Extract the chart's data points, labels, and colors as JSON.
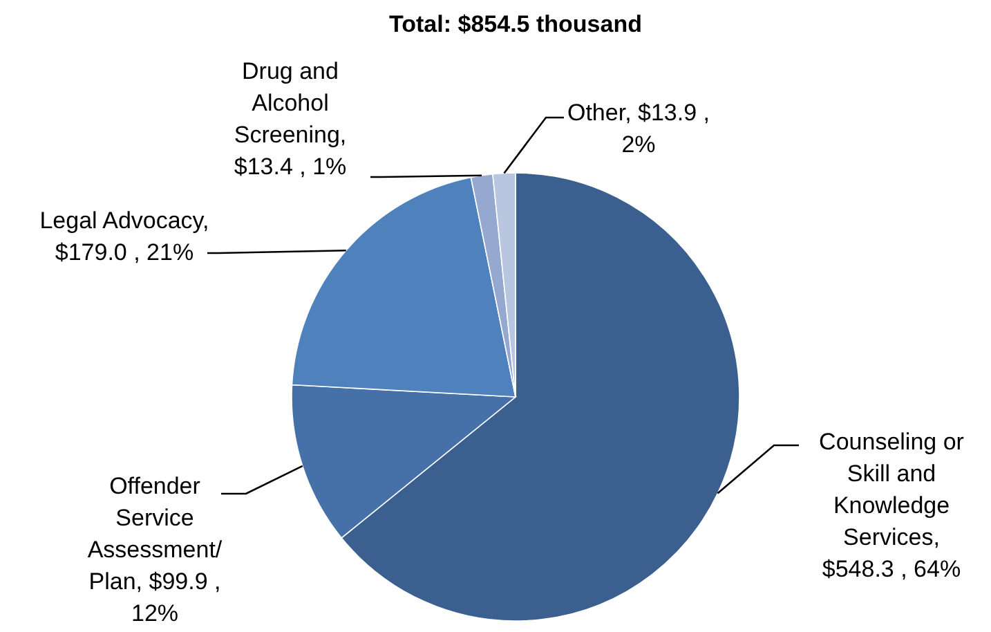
{
  "chart_data": {
    "type": "pie",
    "title": "Total: $854.5 thousand",
    "categories": [
      "Counseling or Skill and Knowledge Services",
      "Offender Service Assessment/Plan",
      "Legal Advocacy",
      "Drug and Alcohol Screening",
      "Other"
    ],
    "values": [
      548.3,
      99.9,
      179.0,
      13.4,
      13.9
    ],
    "colors": [
      "#3b5f8f",
      "#4570a8",
      "#4f81bd",
      "#95a9d0",
      "#b9c6e0"
    ],
    "value_labels": [
      ", $548.3 , 64%",
      ", $99.9 , 12%",
      ", $179.0 , 21%",
      ", $13.4 , 1%",
      ", $13.9 , 2%"
    ],
    "legend": false
  }
}
